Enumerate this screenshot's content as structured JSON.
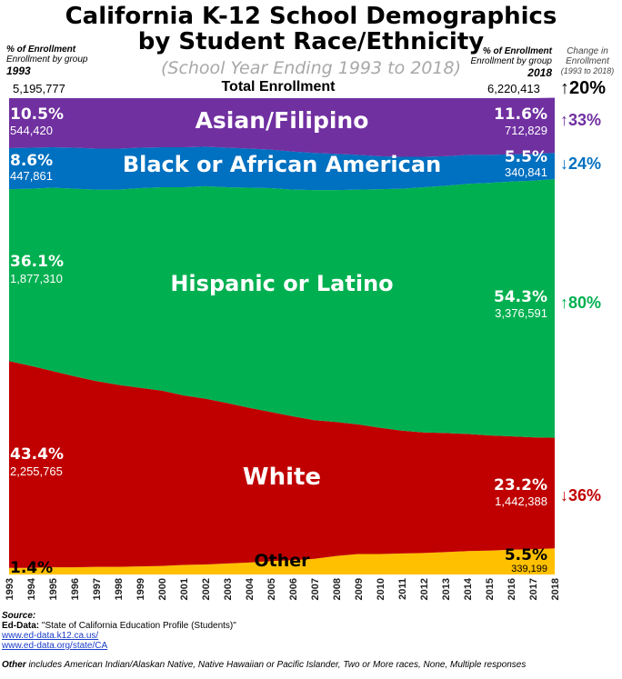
{
  "header": {
    "title_line1": "California K-12 School Demographics",
    "title_line2": "by Student Race/Ethnicity",
    "subtitle": "(School Year Ending 1993 to 2018)",
    "left_label_line1": "% of Enrollment",
    "left_label_line2": "Enrollment by group",
    "left_year": "1993",
    "right_label_line1": "% of Enrollment",
    "right_label_line2": "Enrollment by group",
    "right_year": "2018",
    "change_label_line1": "Change in",
    "change_label_line2": "Enrollment",
    "change_label_line3": "(1993 to 2018)"
  },
  "total": {
    "label": "Total Enrollment",
    "start": "5,195,777",
    "end": "6,220,413",
    "change": "↑20%"
  },
  "groups": {
    "asian": {
      "name": "Asian/Filipino",
      "pct_1993": "10.5%",
      "count_1993": "544,420",
      "pct_2018": "11.6%",
      "count_2018": "712,829",
      "change": "↑33%",
      "color": "#7030a0"
    },
    "black": {
      "name": "Black or African American",
      "pct_1993": "8.6%",
      "count_1993": "447,861",
      "pct_2018": "5.5%",
      "count_2018": "340,841",
      "change": "↓24%",
      "color": "#0070c0"
    },
    "hispanic": {
      "name": "Hispanic or Latino",
      "pct_1993": "36.1%",
      "count_1993": "1,877,310",
      "pct_2018": "54.3%",
      "count_2018": "3,376,591",
      "change": "↑80%",
      "color": "#00b050"
    },
    "white": {
      "name": "White",
      "pct_1993": "43.4%",
      "count_1993": "2,255,765",
      "pct_2018": "23.2%",
      "count_2018": "1,442,388",
      "change": "↓36%",
      "color": "#c00000"
    },
    "other": {
      "name": "Other",
      "pct_1993": "1.4%",
      "pct_2018": "5.5%",
      "count_2018": "339,199",
      "color": "#ffc000"
    }
  },
  "chart_data": {
    "type": "area",
    "stacked": true,
    "normalized": true,
    "title": "California K-12 School Demographics by Student Race/Ethnicity",
    "subtitle": "(School Year Ending 1993 to 2018)",
    "xlabel": "",
    "ylabel": "% of Enrollment",
    "ylim": [
      0,
      100
    ],
    "categories": [
      "1993",
      "1994",
      "1995",
      "1996",
      "1997",
      "1998",
      "1999",
      "2000",
      "2001",
      "2002",
      "2003",
      "2004",
      "2005",
      "2006",
      "2007",
      "2008",
      "2009",
      "2010",
      "2011",
      "2012",
      "2013",
      "2014",
      "2015",
      "2016",
      "2017",
      "2018"
    ],
    "series": [
      {
        "name": "Other",
        "color": "#ffc000",
        "values": [
          1.4,
          1.4,
          1.5,
          1.5,
          1.6,
          1.6,
          1.7,
          1.8,
          2.0,
          2.1,
          2.3,
          2.5,
          2.8,
          3.0,
          3.3,
          3.9,
          4.3,
          4.3,
          4.4,
          4.5,
          4.7,
          4.9,
          5.0,
          5.2,
          5.3,
          5.5
        ]
      },
      {
        "name": "White",
        "color": "#c00000",
        "values": [
          43.4,
          42.4,
          41.2,
          40.1,
          39.0,
          38.2,
          37.5,
          36.8,
          35.6,
          34.8,
          33.7,
          32.5,
          31.3,
          30.2,
          29.1,
          28.1,
          27.2,
          26.5,
          25.8,
          25.3,
          25.0,
          24.6,
          24.2,
          23.8,
          23.5,
          23.2
        ]
      },
      {
        "name": "Hispanic or Latino",
        "color": "#00b050",
        "values": [
          36.1,
          37.2,
          38.5,
          39.4,
          40.2,
          41.0,
          41.9,
          42.7,
          43.7,
          44.6,
          45.3,
          46.2,
          47.0,
          47.6,
          48.3,
          48.7,
          49.3,
          50.1,
          50.8,
          51.5,
          51.9,
          52.5,
          53.0,
          53.5,
          53.9,
          54.3
        ]
      },
      {
        "name": "Black or African American",
        "color": "#0070c0",
        "values": [
          8.6,
          8.6,
          8.5,
          8.6,
          8.6,
          8.6,
          8.5,
          8.4,
          8.4,
          8.3,
          8.3,
          8.2,
          8.1,
          8.0,
          7.8,
          7.6,
          7.3,
          6.9,
          6.7,
          6.4,
          6.2,
          6.1,
          5.9,
          5.7,
          5.6,
          5.5
        ]
      },
      {
        "name": "Asian/Filipino",
        "color": "#7030a0",
        "values": [
          10.5,
          10.4,
          10.3,
          10.4,
          10.6,
          10.6,
          10.4,
          10.3,
          10.3,
          10.2,
          10.4,
          10.6,
          10.8,
          11.2,
          11.5,
          11.7,
          11.9,
          12.2,
          12.3,
          12.3,
          12.2,
          11.9,
          11.9,
          11.8,
          11.7,
          11.6
        ]
      }
    ]
  },
  "source": {
    "heading": "Source:",
    "line1_bold": "Ed-Data:",
    "line1_rest": "\"State of California Education Profile (Students)\"",
    "link1": "www.ed-data.k12.ca.us/",
    "link2": "www.ed-data.org/state/CA",
    "note_bold": "Other",
    "note_rest": "includes American Indian/Alaskan Native, Native Hawaiian or Pacific Islander, Two or More races, None, Multiple responses"
  }
}
